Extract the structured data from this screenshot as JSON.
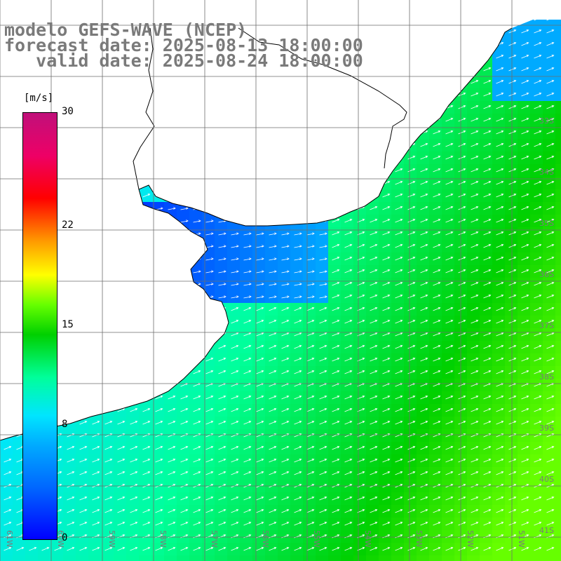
{
  "title": {
    "line1": "modelo GEFS-WAVE (NCEP)",
    "line2": "forecast date: 2025-08-13 18:00:00",
    "line3": "   valid date: 2025-08-24 18:00:00"
  },
  "colorbar": {
    "units": "[m/s]",
    "ticks": [
      {
        "label": "30",
        "value": 30
      },
      {
        "label": "22",
        "value": 22
      },
      {
        "label": "15",
        "value": 15
      },
      {
        "label": "8",
        "value": 8
      },
      {
        "label": "0",
        "value": 0
      }
    ]
  },
  "map": {
    "lon_labels": [
      "61W",
      "60W",
      "59W",
      "58W",
      "57W",
      "56W",
      "55W",
      "54W",
      "53W",
      "52W",
      "51W"
    ],
    "lat_labels": [
      "33S",
      "34S",
      "35S",
      "36S",
      "37S",
      "38S",
      "39S",
      "40S",
      "41S"
    ],
    "colors": {
      "land": "#ffffff",
      "coast": "#000000",
      "grid": "#6e6e6e",
      "arrow": "#ffffff",
      "title": "#7a7a7a"
    }
  }
}
